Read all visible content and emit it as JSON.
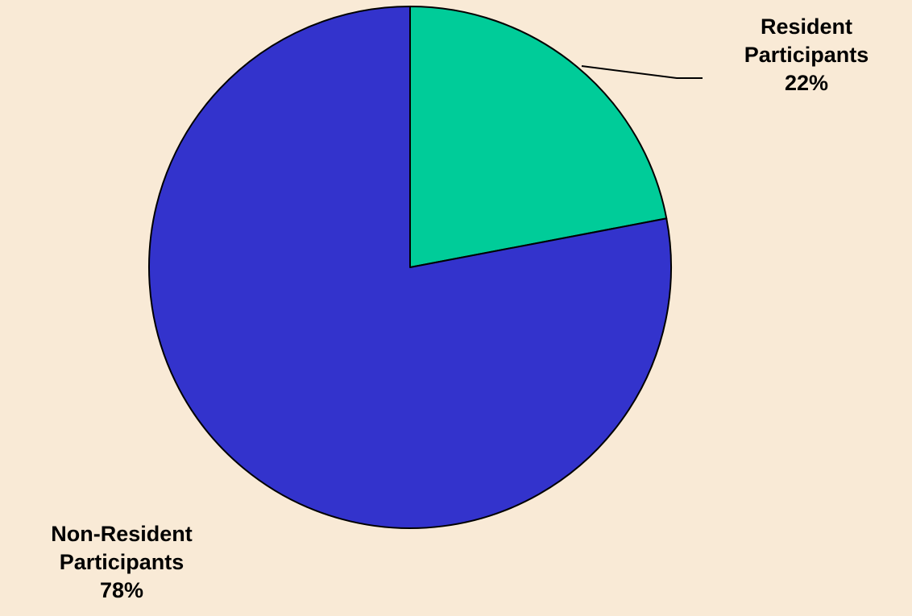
{
  "chart_data": {
    "type": "pie",
    "title": "",
    "legend": "none",
    "start_angle_deg": 0,
    "direction": "clockwise",
    "slices": [
      {
        "label_lines": [
          "Resident",
          "Participants"
        ],
        "value": 22,
        "value_label": "22%",
        "color": "#00CC99"
      },
      {
        "label_lines": [
          "Non-Resident",
          "Participants"
        ],
        "value": 78,
        "value_label": "78%",
        "color": "#3333CC"
      }
    ]
  },
  "colors": {
    "background": "#F9EAD6",
    "slice_outline": "#000000",
    "leader_line": "#000000"
  }
}
